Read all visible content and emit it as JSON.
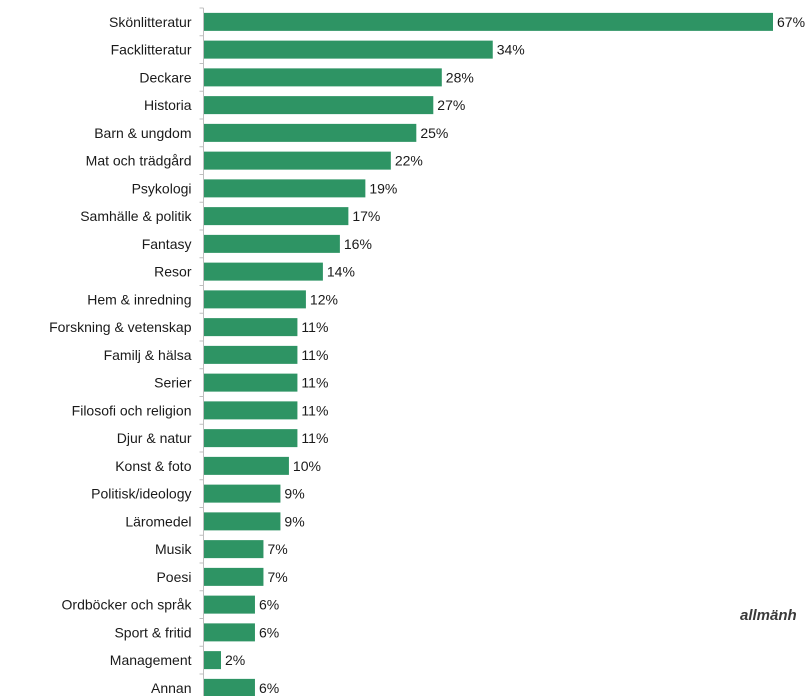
{
  "chart_data": {
    "type": "bar",
    "orientation": "horizontal",
    "categories": [
      "Skönlitteratur",
      "Facklitteratur",
      "Deckare",
      "Historia",
      "Barn & ungdom",
      "Mat och trädgård",
      "Psykologi",
      "Samhälle & politik",
      "Fantasy",
      "Resor",
      "Hem & inredning",
      "Forskning & vetenskap",
      "Familj & hälsa",
      "Serier",
      "Filosofi och religion",
      "Djur & natur",
      "Konst & foto",
      "Politisk/ideology",
      "Läromedel",
      "Musik",
      "Poesi",
      "Ordböcker och språk",
      "Sport & fritid",
      "Management",
      "Annan"
    ],
    "values": [
      67,
      34,
      28,
      27,
      25,
      22,
      19,
      17,
      16,
      14,
      12,
      11,
      11,
      11,
      11,
      11,
      10,
      9,
      9,
      7,
      7,
      6,
      6,
      2,
      6
    ],
    "value_labels": [
      "67%",
      "34%",
      "28%",
      "27%",
      "25%",
      "22%",
      "19%",
      "17%",
      "16%",
      "14%",
      "12%",
      "11%",
      "11%",
      "11%",
      "11%",
      "11%",
      "10%",
      "9%",
      "9%",
      "7%",
      "7%",
      "6%",
      "6%",
      "2%",
      "6%"
    ],
    "unit": "%",
    "xlim": [
      0,
      67
    ],
    "grid": false,
    "legend": "none",
    "bar_color": "#2e9464",
    "axis_color": "#bfbfbf"
  },
  "annotation": {
    "text": "allmänh"
  }
}
